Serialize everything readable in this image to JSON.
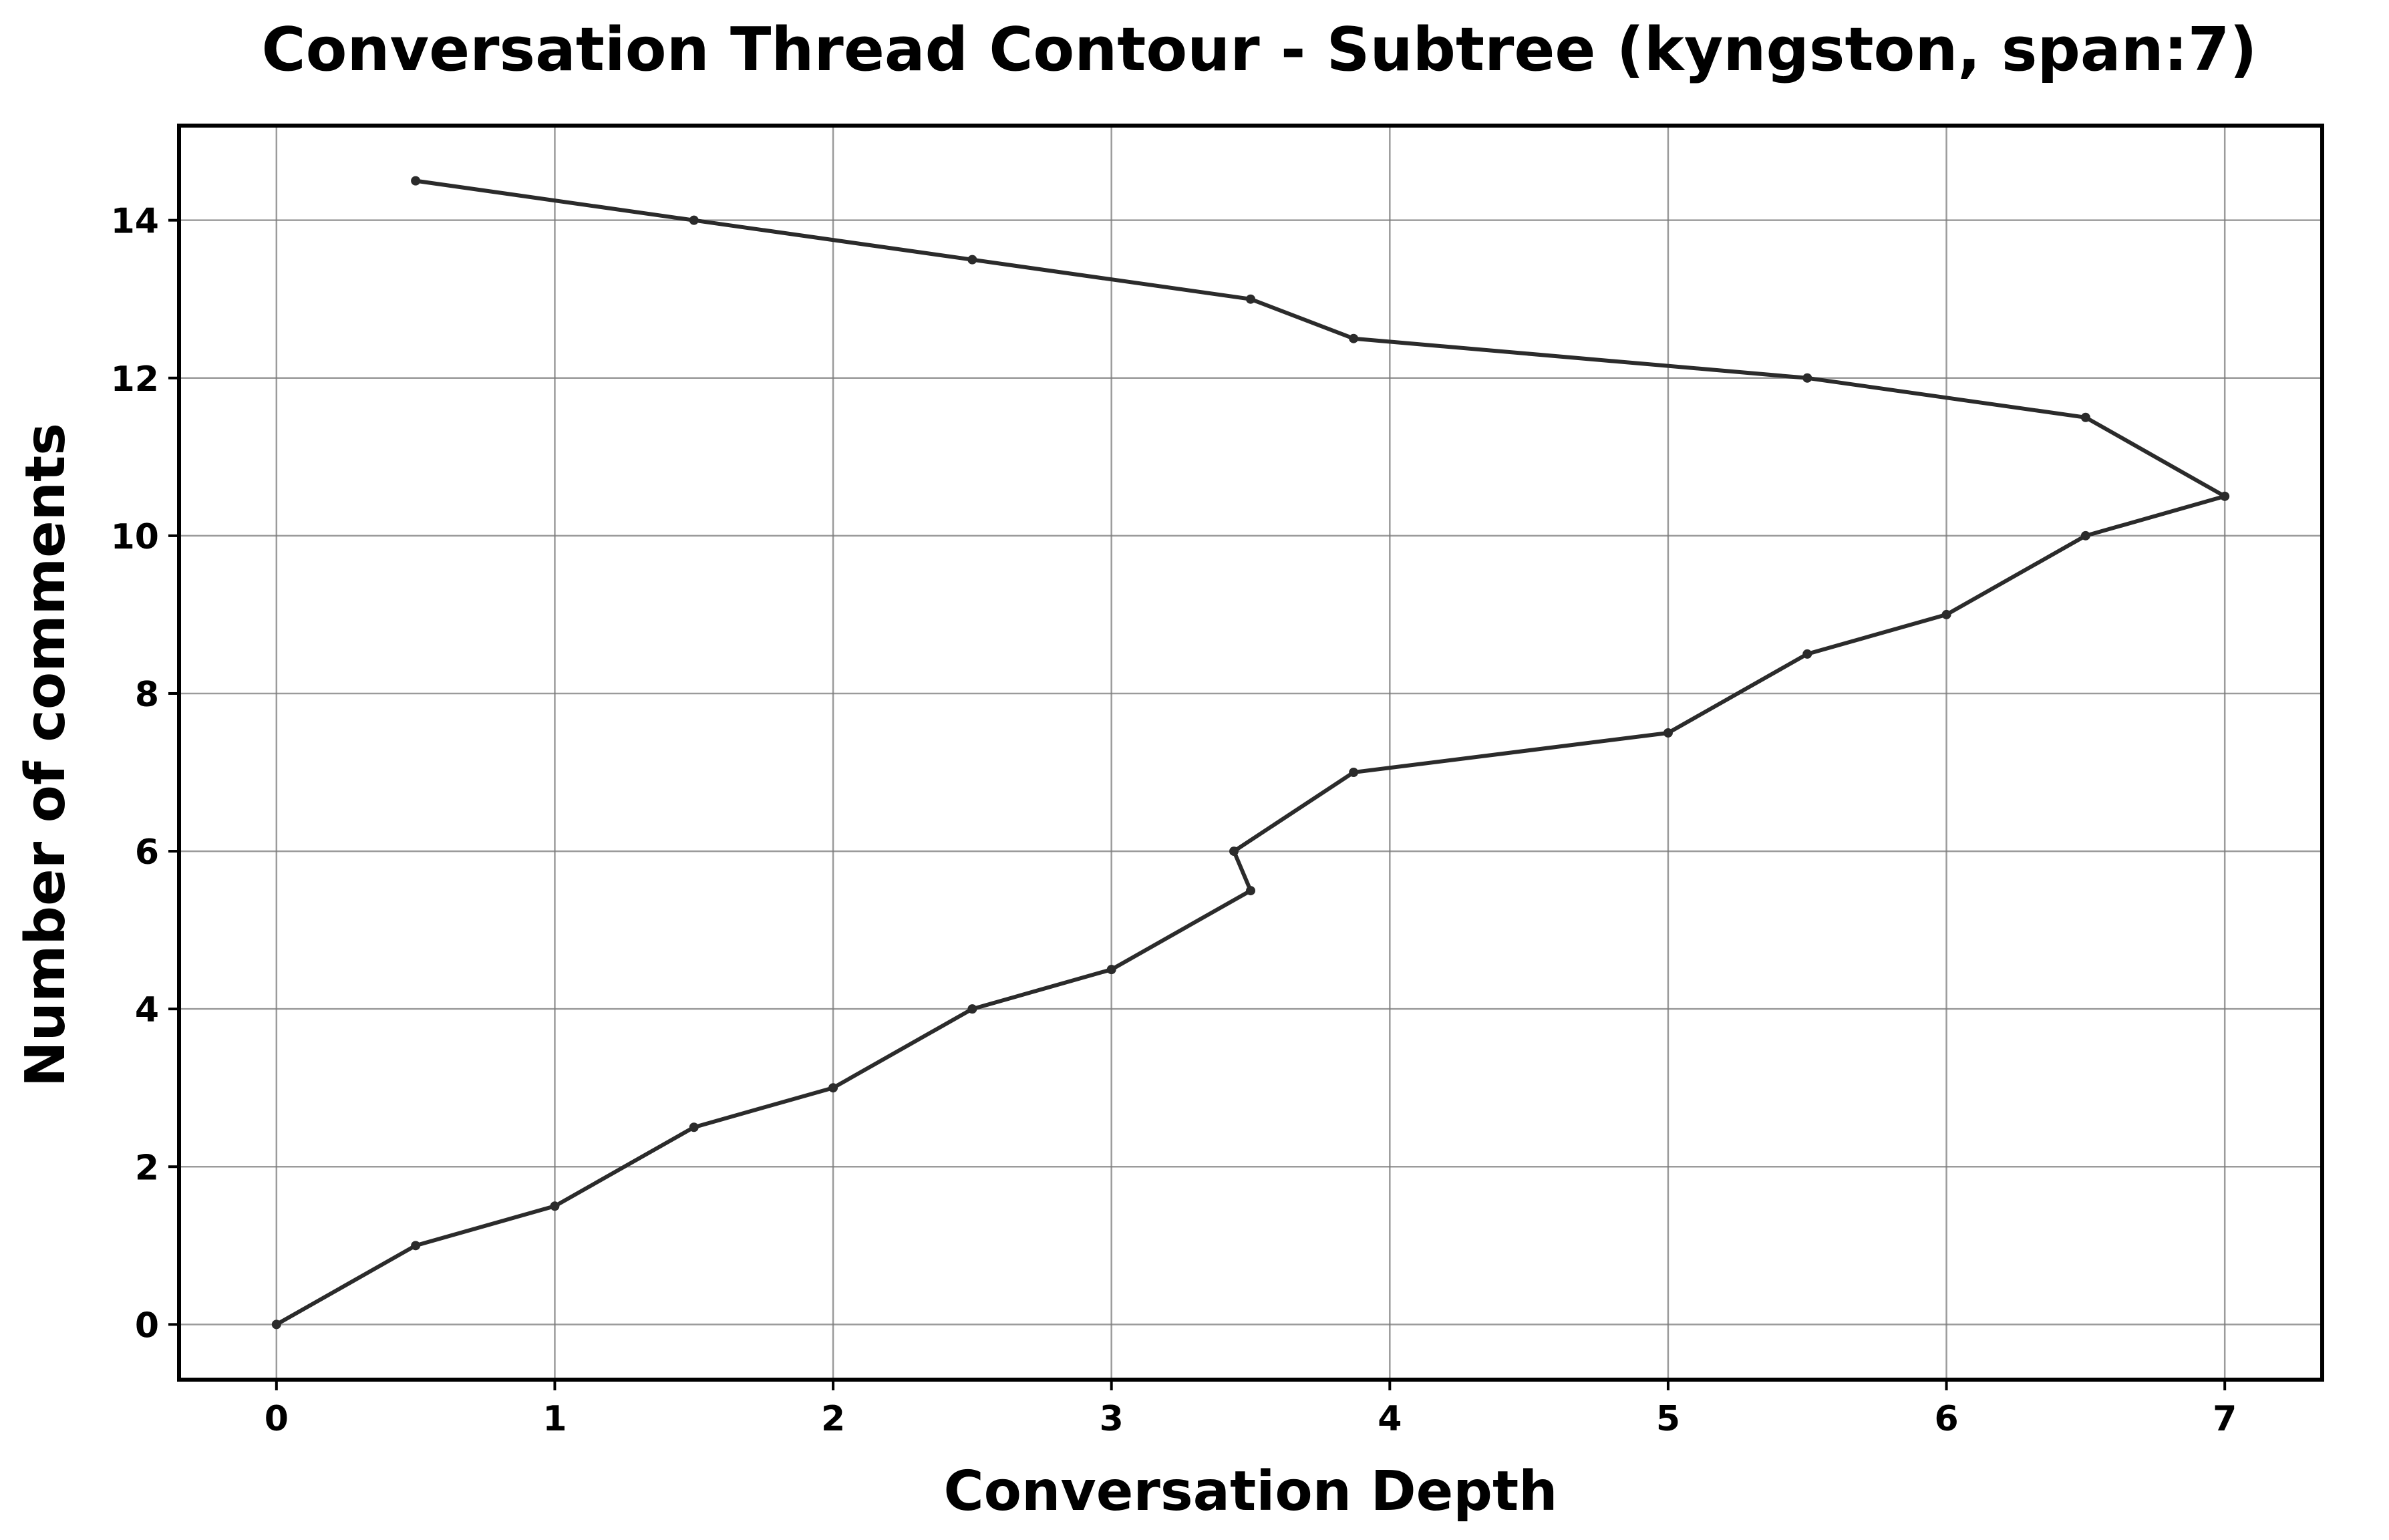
{
  "chart_data": {
    "type": "line",
    "title": "Conversation Thread Contour  - Subtree (kyngston, span:7)",
    "xlabel": "Conversation Depth",
    "ylabel": "Number of comments",
    "xlim": [
      -0.35,
      7.35
    ],
    "ylim": [
      -0.7,
      15.2
    ],
    "xticks": [
      0,
      1,
      2,
      3,
      4,
      5,
      6,
      7
    ],
    "yticks": [
      0,
      2,
      4,
      6,
      8,
      10,
      12,
      14
    ],
    "grid": true,
    "legend": "none",
    "series": [
      {
        "color": "#2b2b2b",
        "x": [
          0,
          0.5,
          1,
          1.5,
          2,
          2.5,
          3,
          3.5,
          3.44,
          3.87,
          5,
          5.5,
          6,
          6.5,
          7,
          6.5,
          5.5,
          3.87,
          3.5,
          2.5,
          1.5,
          0.5
        ],
        "y": [
          0,
          1,
          1.5,
          2.5,
          3,
          4,
          4.5,
          5.5,
          6,
          7,
          7.5,
          8.5,
          9,
          10,
          10.5,
          11.5,
          12,
          12.5,
          13,
          13.5,
          14,
          14.5
        ]
      }
    ]
  }
}
